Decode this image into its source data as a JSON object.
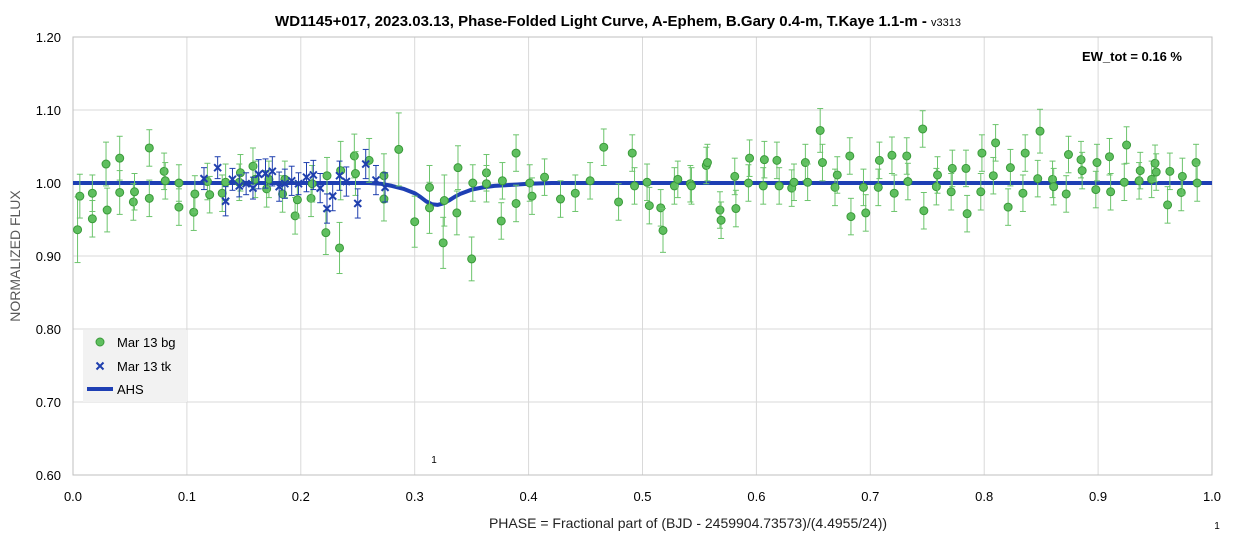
{
  "chart_data": {
    "type": "scatter",
    "title": "WD1145+017, 2023.03.13, Phase-Folded Light Curve, A-Ephem, B.Gary 0.4-m, T.Kaye 1.1-m - ",
    "version": "v3313",
    "xlabel": "PHASE = Fractional part of (BJD - 2459904.73573)/(4.4955/24))",
    "ylabel": "NORMALIZED FLUX",
    "xlim": [
      0,
      1.0
    ],
    "ylim": [
      0.6,
      1.2
    ],
    "xticks": [
      "0.0",
      "0.1",
      "0.2",
      "0.3",
      "0.4",
      "0.5",
      "0.6",
      "0.7",
      "0.8",
      "0.9",
      "1.0"
    ],
    "yticks": [
      "0.60",
      "0.70",
      "0.80",
      "0.90",
      "1.00",
      "1.10",
      "1.20"
    ],
    "grid": true,
    "legend_position": "bottom-left",
    "annotation": "EW_tot = 0.16 %",
    "marker_text_plot": "1",
    "marker_text_corner": "1",
    "colors": {
      "bg": "#5fbf5f",
      "bg_edge": "#3a9a3a",
      "bg_err": "#6cc46c",
      "tk": "#1f3fae",
      "ahs": "#1e3fb4",
      "grid": "#d9d9d9"
    },
    "series": [
      {
        "name": "Mar 13 bg",
        "marker": "circle",
        "points": [
          [
            0.004,
            0.936,
            0.045
          ],
          [
            0.006,
            0.982,
            0.03
          ],
          [
            0.017,
            0.951,
            0.025
          ],
          [
            0.017,
            0.986,
            0.025
          ],
          [
            0.029,
            1.026,
            0.03
          ],
          [
            0.03,
            0.963,
            0.03
          ],
          [
            0.041,
            0.987,
            0.03
          ],
          [
            0.041,
            1.034,
            0.03
          ],
          [
            0.053,
            0.974,
            0.025
          ],
          [
            0.054,
            0.988,
            0.025
          ],
          [
            0.067,
            1.048,
            0.025
          ],
          [
            0.067,
            0.979,
            0.025
          ],
          [
            0.08,
            1.016,
            0.025
          ],
          [
            0.081,
            1.003,
            0.025
          ],
          [
            0.093,
            0.967,
            0.025
          ],
          [
            0.093,
            1.0,
            0.025
          ],
          [
            0.106,
            0.96,
            0.025
          ],
          [
            0.107,
            0.985,
            0.025
          ],
          [
            0.118,
            1.002,
            0.025
          ],
          [
            0.12,
            0.984,
            0.025
          ],
          [
            0.131,
            0.986,
            0.025
          ],
          [
            0.134,
            1.001,
            0.025
          ],
          [
            0.146,
            1.001,
            0.025
          ],
          [
            0.147,
            1.014,
            0.025
          ],
          [
            0.158,
            1.023,
            0.025
          ],
          [
            0.16,
            1.005,
            0.025
          ],
          [
            0.17,
            0.992,
            0.025
          ],
          [
            0.172,
            1.005,
            0.025
          ],
          [
            0.184,
            0.985,
            0.025
          ],
          [
            0.186,
            1.005,
            0.025
          ],
          [
            0.195,
            0.955,
            0.025
          ],
          [
            0.197,
            0.977,
            0.025
          ],
          [
            0.209,
            0.979,
            0.025
          ],
          [
            0.21,
            0.999,
            0.025
          ],
          [
            0.222,
            0.932,
            0.03
          ],
          [
            0.223,
            1.01,
            0.025
          ],
          [
            0.234,
            0.911,
            0.035
          ],
          [
            0.235,
            1.017,
            0.04
          ],
          [
            0.247,
            1.037,
            0.03
          ],
          [
            0.248,
            1.013,
            0.03
          ],
          [
            0.26,
            1.031,
            0.03
          ],
          [
            0.273,
            1.01,
            0.03
          ],
          [
            0.273,
            0.978,
            0.03
          ],
          [
            0.286,
            1.046,
            0.05
          ],
          [
            0.3,
            0.947,
            0.035
          ],
          [
            0.313,
            0.966,
            0.035
          ],
          [
            0.313,
            0.994,
            0.03
          ],
          [
            0.325,
            0.918,
            0.035
          ],
          [
            0.326,
            0.976,
            0.035
          ],
          [
            0.337,
            0.959,
            0.03
          ],
          [
            0.338,
            1.021,
            0.03
          ],
          [
            0.35,
            0.896,
            0.03
          ],
          [
            0.351,
            1.0,
            0.025
          ],
          [
            0.363,
            1.014,
            0.025
          ],
          [
            0.363,
            0.999,
            0.025
          ],
          [
            0.376,
            0.948,
            0.025
          ],
          [
            0.377,
            1.003,
            0.025
          ],
          [
            0.389,
            1.041,
            0.025
          ],
          [
            0.389,
            0.972,
            0.025
          ],
          [
            0.401,
            1.0,
            0.025
          ],
          [
            0.403,
            0.982,
            0.025
          ],
          [
            0.414,
            1.008,
            0.025
          ],
          [
            0.428,
            0.978,
            0.025
          ],
          [
            0.441,
            0.986,
            0.025
          ],
          [
            0.454,
            1.003,
            0.025
          ],
          [
            0.466,
            1.049,
            0.025
          ],
          [
            0.479,
            0.974,
            0.025
          ],
          [
            0.491,
            1.041,
            0.025
          ],
          [
            0.493,
            0.996,
            0.025
          ],
          [
            0.504,
            1.001,
            0.025
          ],
          [
            0.506,
            0.969,
            0.025
          ],
          [
            0.516,
            0.966,
            0.025
          ],
          [
            0.518,
            0.935,
            0.03
          ],
          [
            0.528,
            0.996,
            0.025
          ],
          [
            0.531,
            1.005,
            0.025
          ],
          [
            0.542,
            0.999,
            0.025
          ],
          [
            0.543,
            0.996,
            0.025
          ],
          [
            0.556,
            1.024,
            0.025
          ],
          [
            0.557,
            1.028,
            0.025
          ],
          [
            0.568,
            0.963,
            0.025
          ],
          [
            0.569,
            0.949,
            0.025
          ],
          [
            0.581,
            1.009,
            0.025
          ],
          [
            0.582,
            0.965,
            0.025
          ],
          [
            0.593,
            1.0,
            0.025
          ],
          [
            0.594,
            1.034,
            0.025
          ],
          [
            0.606,
            0.996,
            0.025
          ],
          [
            0.607,
            1.032,
            0.025
          ],
          [
            0.618,
            1.031,
            0.025
          ],
          [
            0.62,
            0.996,
            0.025
          ],
          [
            0.631,
            0.993,
            0.025
          ],
          [
            0.633,
            1.001,
            0.025
          ],
          [
            0.643,
            1.028,
            0.025
          ],
          [
            0.645,
            1.001,
            0.025
          ],
          [
            0.656,
            1.072,
            0.03
          ],
          [
            0.658,
            1.028,
            0.025
          ],
          [
            0.669,
            0.994,
            0.025
          ],
          [
            0.671,
            1.011,
            0.025
          ],
          [
            0.682,
            1.037,
            0.025
          ],
          [
            0.683,
            0.954,
            0.025
          ],
          [
            0.694,
            0.994,
            0.025
          ],
          [
            0.696,
            0.959,
            0.025
          ],
          [
            0.707,
            0.994,
            0.025
          ],
          [
            0.708,
            1.031,
            0.025
          ],
          [
            0.719,
            1.038,
            0.025
          ],
          [
            0.721,
            0.986,
            0.025
          ],
          [
            0.732,
            1.037,
            0.025
          ],
          [
            0.733,
            1.002,
            0.025
          ],
          [
            0.746,
            1.074,
            0.025
          ],
          [
            0.747,
            0.962,
            0.025
          ],
          [
            0.758,
            0.995,
            0.025
          ],
          [
            0.759,
            1.011,
            0.025
          ],
          [
            0.771,
            0.988,
            0.025
          ],
          [
            0.772,
            1.02,
            0.025
          ],
          [
            0.784,
            1.02,
            0.025
          ],
          [
            0.785,
            0.958,
            0.025
          ],
          [
            0.797,
            0.988,
            0.025
          ],
          [
            0.798,
            1.041,
            0.025
          ],
          [
            0.808,
            1.01,
            0.025
          ],
          [
            0.81,
            1.055,
            0.025
          ],
          [
            0.821,
            0.967,
            0.025
          ],
          [
            0.823,
            1.021,
            0.025
          ],
          [
            0.834,
            0.986,
            0.025
          ],
          [
            0.836,
            1.041,
            0.025
          ],
          [
            0.847,
            1.006,
            0.025
          ],
          [
            0.849,
            1.071,
            0.03
          ],
          [
            0.86,
            1.005,
            0.025
          ],
          [
            0.861,
            0.995,
            0.025
          ],
          [
            0.872,
            0.985,
            0.025
          ],
          [
            0.874,
            1.039,
            0.025
          ],
          [
            0.885,
            1.032,
            0.025
          ],
          [
            0.886,
            1.017,
            0.025
          ],
          [
            0.898,
            0.991,
            0.025
          ],
          [
            0.899,
            1.028,
            0.025
          ],
          [
            0.91,
            1.036,
            0.025
          ],
          [
            0.911,
            0.988,
            0.025
          ],
          [
            0.923,
            1.001,
            0.025
          ],
          [
            0.925,
            1.052,
            0.025
          ],
          [
            0.936,
            1.003,
            0.025
          ],
          [
            0.937,
            1.017,
            0.025
          ],
          [
            0.947,
            1.005,
            0.025
          ],
          [
            0.95,
            1.027,
            0.025
          ],
          [
            0.951,
            1.015,
            0.025
          ],
          [
            0.961,
            0.97,
            0.025
          ],
          [
            0.963,
            1.016,
            0.025
          ],
          [
            0.973,
            0.987,
            0.025
          ],
          [
            0.974,
            1.009,
            0.025
          ],
          [
            0.986,
            1.028,
            0.025
          ],
          [
            0.987,
            1.0,
            0.025
          ]
        ]
      },
      {
        "name": "Mar 13 tk",
        "marker": "x",
        "points": [
          [
            0.115,
            1.006,
            0.015
          ],
          [
            0.127,
            1.021,
            0.015
          ],
          [
            0.134,
            0.975,
            0.02
          ],
          [
            0.14,
            1.005,
            0.015
          ],
          [
            0.146,
            0.996,
            0.015
          ],
          [
            0.152,
            0.999,
            0.015
          ],
          [
            0.158,
            0.993,
            0.015
          ],
          [
            0.163,
            1.012,
            0.02
          ],
          [
            0.169,
            1.013,
            0.02
          ],
          [
            0.175,
            1.016,
            0.02
          ],
          [
            0.181,
            0.995,
            0.02
          ],
          [
            0.186,
            0.999,
            0.02
          ],
          [
            0.192,
            1.003,
            0.02
          ],
          [
            0.198,
            0.999,
            0.015
          ],
          [
            0.205,
            1.008,
            0.02
          ],
          [
            0.211,
            1.011,
            0.02
          ],
          [
            0.217,
            0.993,
            0.02
          ],
          [
            0.223,
            0.965,
            0.02
          ],
          [
            0.228,
            0.982,
            0.02
          ],
          [
            0.234,
            1.01,
            0.02
          ],
          [
            0.24,
            1.002,
            0.02
          ],
          [
            0.25,
            0.972,
            0.02
          ],
          [
            0.257,
            1.026,
            0.02
          ],
          [
            0.266,
            1.004,
            0.02
          ],
          [
            0.274,
            0.994,
            0.02
          ]
        ]
      },
      {
        "name": "AHS",
        "type": "line",
        "x": [
          0.0,
          0.26,
          0.27,
          0.28,
          0.29,
          0.3,
          0.305,
          0.31,
          0.315,
          0.32,
          0.325,
          0.33,
          0.335,
          0.34,
          0.345,
          0.35,
          0.36,
          0.37,
          0.38,
          0.39,
          0.4,
          0.41,
          0.42,
          1.0
        ],
        "y": [
          1.0,
          1.0,
          0.999,
          0.996,
          0.992,
          0.986,
          0.981,
          0.975,
          0.971,
          0.97,
          0.972,
          0.976,
          0.981,
          0.985,
          0.988,
          0.991,
          0.994,
          0.996,
          0.997,
          0.998,
          0.999,
          0.9995,
          1.0,
          1.0
        ]
      }
    ]
  }
}
